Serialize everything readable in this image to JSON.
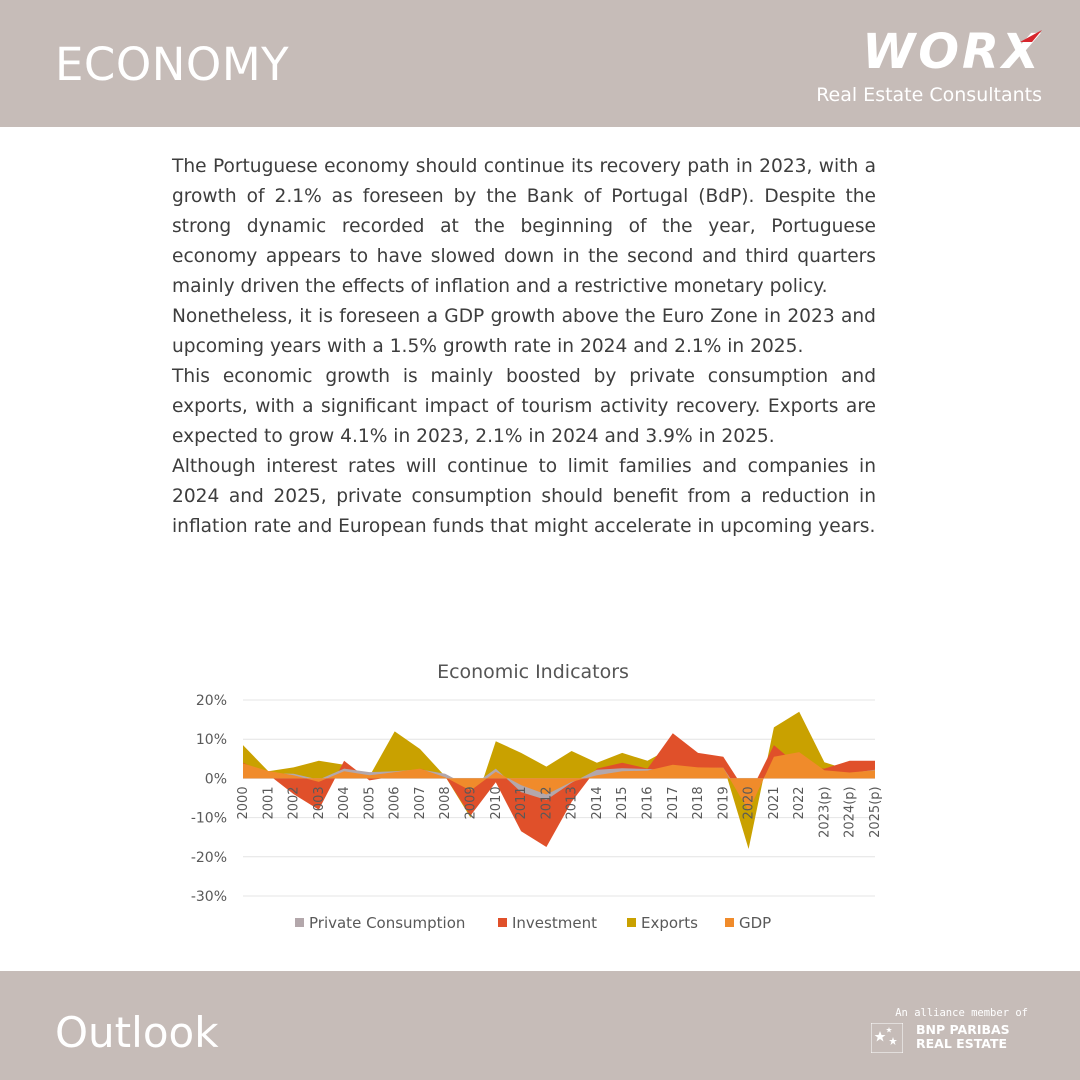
{
  "header": {
    "title": "ECONOMY",
    "logo_word": "WORX",
    "logo_sub": "Real Estate Consultants",
    "logo_icon": "red-swoosh-icon",
    "accent": "#d7262d",
    "band_color": "#c6bcb8"
  },
  "body": {
    "paragraphs": [
      "The Portuguese economy should continue its recovery path in 2023, with a growth of 2.1% as foreseen by the Bank of Portugal (BdP). Despite the strong dynamic recorded at the beginning of the year, Portuguese economy appears to have slowed down in the second and third quarters mainly driven the effects of inflation and a restrictive monetary policy.",
      "Nonetheless, it is foreseen a GDP growth above the Euro Zone in 2023 and upcoming years with a 1.5% growth rate in 2024 and 2.1% in 2025.",
      "This economic growth is mainly boosted by private consumption and exports, with a significant impact of tourism activity recovery. Exports are expected to grow 4.1% in 2023, 2.1% in 2024 and 3.9% in 2025.",
      "Although interest rates will continue to limit families and companies in 2024 and 2025, private consumption should benefit from a reduction in inflation rate and European funds that might accelerate in upcoming years."
    ]
  },
  "chart_data": {
    "type": "area",
    "title": "Economic Indicators",
    "xlabel": "",
    "ylabel": "",
    "ylim": [
      -30,
      20
    ],
    "yticks": [
      20,
      10,
      0,
      -10,
      -20,
      -30
    ],
    "ytick_labels": [
      "20%",
      "10%",
      "0%",
      "-10%",
      "-20%",
      "-30%"
    ],
    "grid": true,
    "legend_position": "bottom",
    "categories": [
      "2000",
      "2001",
      "2002",
      "2003",
      "2004",
      "2005",
      "2006",
      "2007",
      "2008",
      "2009",
      "2010",
      "2011",
      "2012",
      "2013",
      "2014",
      "2015",
      "2016",
      "2017",
      "2018",
      "2019",
      "2020",
      "2021",
      "2022",
      "2023(p)",
      "2024(p)",
      "2025(p)"
    ],
    "series": [
      {
        "name": "Private Consumption",
        "color": "#b3a7ab",
        "values": [
          3.5,
          1.3,
          1.2,
          -0.3,
          2.5,
          1.6,
          1.8,
          2.3,
          1.2,
          -2.2,
          2.5,
          -3.5,
          -5.5,
          -1.1,
          2.2,
          2.6,
          2.4,
          2.1,
          2.6,
          2.7,
          -7.0,
          4.7,
          5.6,
          1.0,
          1.3,
          2.2
        ]
      },
      {
        "name": "Investment",
        "color": "#e0502a",
        "values": [
          4.0,
          1.0,
          -4.0,
          -8.0,
          4.5,
          -0.5,
          0.5,
          2.5,
          0.5,
          -9.5,
          -1.0,
          -13.5,
          -17.5,
          -6.0,
          2.5,
          4.0,
          2.5,
          11.5,
          6.5,
          5.5,
          -4.5,
          8.5,
          3.0,
          2.5,
          4.5,
          4.5
        ]
      },
      {
        "name": "Exports",
        "color": "#c9a100",
        "values": [
          8.5,
          1.8,
          2.8,
          4.5,
          3.5,
          0.5,
          12.0,
          7.5,
          0.5,
          -10.0,
          9.5,
          6.5,
          3.0,
          7.0,
          4.0,
          6.5,
          4.5,
          8.0,
          4.0,
          3.5,
          -18.0,
          13.0,
          17.0,
          4.1,
          2.1,
          3.9
        ]
      },
      {
        "name": "GDP",
        "color": "#f08b2b",
        "values": [
          3.8,
          1.9,
          0.8,
          -0.9,
          1.8,
          0.8,
          1.6,
          2.5,
          0.3,
          -3.1,
          1.7,
          -1.7,
          -4.1,
          -0.9,
          0.8,
          1.8,
          2.0,
          3.5,
          2.8,
          2.7,
          -8.3,
          5.5,
          6.7,
          2.1,
          1.5,
          2.1
        ]
      }
    ]
  },
  "footer": {
    "title": "Outlook",
    "alliance_line": "An alliance member of",
    "alliance_name_1": "BNP PARIBAS",
    "alliance_name_2": "REAL ESTATE",
    "alliance_icon": "stars-cross-icon"
  }
}
